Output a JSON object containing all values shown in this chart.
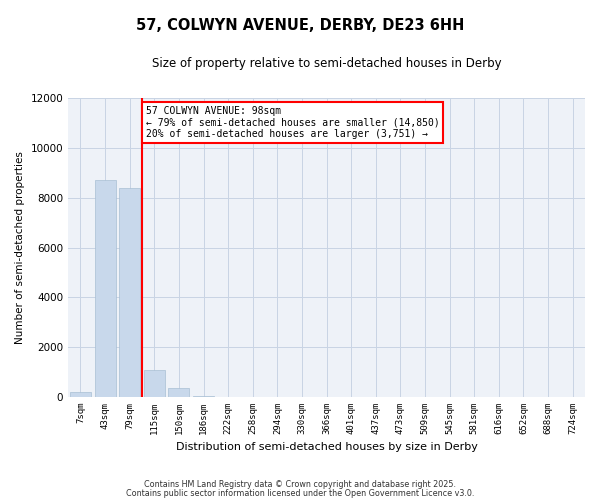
{
  "title": "57, COLWYN AVENUE, DERBY, DE23 6HH",
  "subtitle": "Size of property relative to semi-detached houses in Derby",
  "xlabel": "Distribution of semi-detached houses by size in Derby",
  "ylabel": "Number of semi-detached properties",
  "categories": [
    "7sqm",
    "43sqm",
    "79sqm",
    "115sqm",
    "150sqm",
    "186sqm",
    "222sqm",
    "258sqm",
    "294sqm",
    "330sqm",
    "366sqm",
    "401sqm",
    "437sqm",
    "473sqm",
    "509sqm",
    "545sqm",
    "581sqm",
    "616sqm",
    "652sqm",
    "688sqm",
    "724sqm"
  ],
  "values": [
    200,
    8700,
    8400,
    1100,
    350,
    30,
    0,
    0,
    0,
    0,
    0,
    0,
    0,
    0,
    0,
    0,
    0,
    0,
    0,
    0,
    0
  ],
  "bar_color": "#c8d8eb",
  "bar_edge_color": "#a8bfd4",
  "vline_x": 2.5,
  "vline_color": "red",
  "ylim": [
    0,
    12000
  ],
  "yticks": [
    0,
    2000,
    4000,
    6000,
    8000,
    10000,
    12000
  ],
  "annotation_title": "57 COLWYN AVENUE: 98sqm",
  "annotation_line1": "← 79% of semi-detached houses are smaller (14,850)",
  "annotation_line2": "20% of semi-detached houses are larger (3,751) →",
  "annotation_box_facecolor": "#ffffff",
  "annotation_box_edgecolor": "red",
  "footer_line1": "Contains HM Land Registry data © Crown copyright and database right 2025.",
  "footer_line2": "Contains public sector information licensed under the Open Government Licence v3.0.",
  "background_color": "#ffffff",
  "axes_facecolor": "#eef2f8",
  "grid_color": "#c8d4e4"
}
